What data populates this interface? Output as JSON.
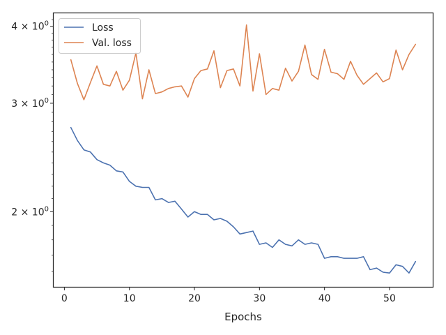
{
  "chart_data": {
    "type": "line",
    "xlabel": "Epochs",
    "ylabel": "",
    "yscale": "log",
    "xlim": [
      -1.65,
      56.65
    ],
    "ylim": [
      1.51,
      4.2
    ],
    "grid": false,
    "legend_position": "top-left",
    "x_ticks": [
      0,
      10,
      20,
      30,
      40,
      50
    ],
    "x_tick_labels": [
      "0",
      "10",
      "20",
      "30",
      "40",
      "50"
    ],
    "y_ticks": [
      2,
      3,
      4
    ],
    "y_tick_labels": [
      {
        "base": "2 × 10",
        "exp": "0"
      },
      {
        "base": "3 × 10",
        "exp": "0"
      },
      {
        "base": "4 × 10",
        "exp": "0"
      }
    ],
    "x": [
      1,
      2,
      3,
      4,
      5,
      6,
      7,
      8,
      9,
      10,
      11,
      12,
      13,
      14,
      15,
      16,
      17,
      18,
      19,
      20,
      21,
      22,
      23,
      24,
      25,
      26,
      27,
      28,
      29,
      30,
      31,
      32,
      33,
      34,
      35,
      36,
      37,
      38,
      39,
      40,
      41,
      42,
      43,
      44,
      45,
      46,
      47,
      48,
      49,
      50,
      51,
      52,
      53,
      54
    ],
    "series": [
      {
        "name": "Loss",
        "color": "#4c72b0",
        "values": [
          2.74,
          2.61,
          2.52,
          2.5,
          2.43,
          2.4,
          2.38,
          2.33,
          2.32,
          2.24,
          2.2,
          2.19,
          2.19,
          2.09,
          2.1,
          2.07,
          2.08,
          2.02,
          1.96,
          2.0,
          1.98,
          1.98,
          1.94,
          1.95,
          1.93,
          1.89,
          1.84,
          1.85,
          1.86,
          1.77,
          1.78,
          1.75,
          1.8,
          1.77,
          1.76,
          1.8,
          1.77,
          1.78,
          1.77,
          1.68,
          1.69,
          1.69,
          1.68,
          1.68,
          1.68,
          1.69,
          1.61,
          1.62,
          1.595,
          1.59,
          1.64,
          1.63,
          1.59,
          1.66
        ]
      },
      {
        "name": "Val. loss",
        "color": "#dd8452",
        "values": [
          3.53,
          3.23,
          3.04,
          3.24,
          3.45,
          3.22,
          3.2,
          3.38,
          3.15,
          3.27,
          3.62,
          3.05,
          3.4,
          3.11,
          3.13,
          3.17,
          3.19,
          3.2,
          3.07,
          3.29,
          3.39,
          3.41,
          3.65,
          3.18,
          3.39,
          3.41,
          3.2,
          4.02,
          3.14,
          3.61,
          3.1,
          3.17,
          3.15,
          3.42,
          3.26,
          3.38,
          3.73,
          3.34,
          3.28,
          3.67,
          3.37,
          3.35,
          3.28,
          3.51,
          3.33,
          3.22,
          3.29,
          3.36,
          3.25,
          3.29,
          3.66,
          3.4,
          3.6,
          3.74
        ]
      }
    ]
  }
}
